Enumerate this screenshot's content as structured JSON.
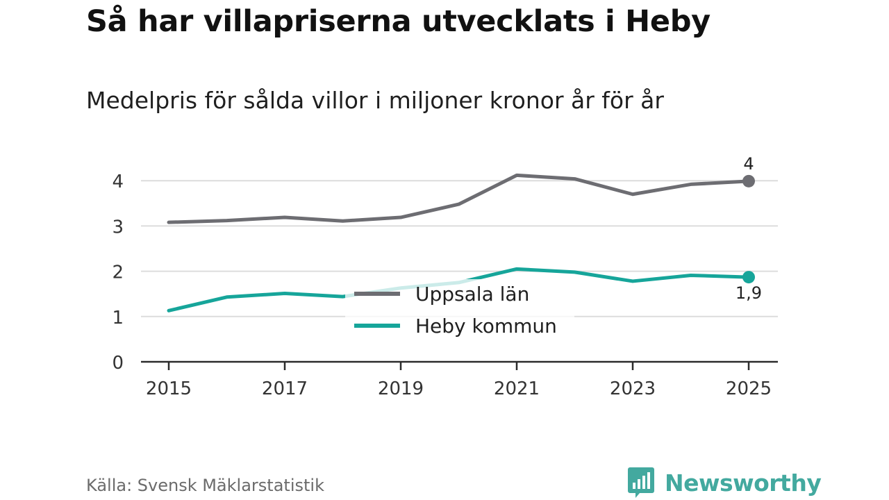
{
  "title": "Så har villapriserna utvecklats i Heby",
  "subtitle": "Medelpris för sålda villor i miljoner kronor år för år",
  "source": "Källa: Svensk Mäklarstatistik",
  "brand": {
    "name": "Newsworthy",
    "icon": "newsworthy-logo-icon",
    "color": "#43a99f"
  },
  "chart_data": {
    "type": "line",
    "title": "Så har villapriserna utvecklats i Heby",
    "subtitle": "Medelpris för sålda villor i miljoner kronor år för år",
    "xlabel": "",
    "ylabel": "",
    "x": [
      2015,
      2016,
      2017,
      2018,
      2019,
      2020,
      2021,
      2022,
      2023,
      2024,
      2025
    ],
    "x_ticks": [
      "2015",
      "2017",
      "2019",
      "2021",
      "2023",
      "2025"
    ],
    "x_tick_values": [
      2015,
      2017,
      2019,
      2021,
      2023,
      2025
    ],
    "y_ticks": [
      "0",
      "1",
      "2",
      "3",
      "4"
    ],
    "y_tick_values": [
      0,
      1,
      2,
      3,
      4
    ],
    "ylim": [
      0,
      4.3
    ],
    "grid": true,
    "legend_position": "center",
    "series": [
      {
        "name": "Uppsala län",
        "color": "#6d6d72",
        "values": [
          3.08,
          3.12,
          3.19,
          3.11,
          3.19,
          3.48,
          4.12,
          4.04,
          3.7,
          3.92,
          3.99
        ],
        "end_label": "4"
      },
      {
        "name": "Heby kommun",
        "color": "#16a59a",
        "values": [
          1.13,
          1.43,
          1.51,
          1.44,
          1.63,
          1.75,
          2.05,
          1.98,
          1.78,
          1.91,
          1.87
        ],
        "end_label": "1,9"
      }
    ]
  }
}
